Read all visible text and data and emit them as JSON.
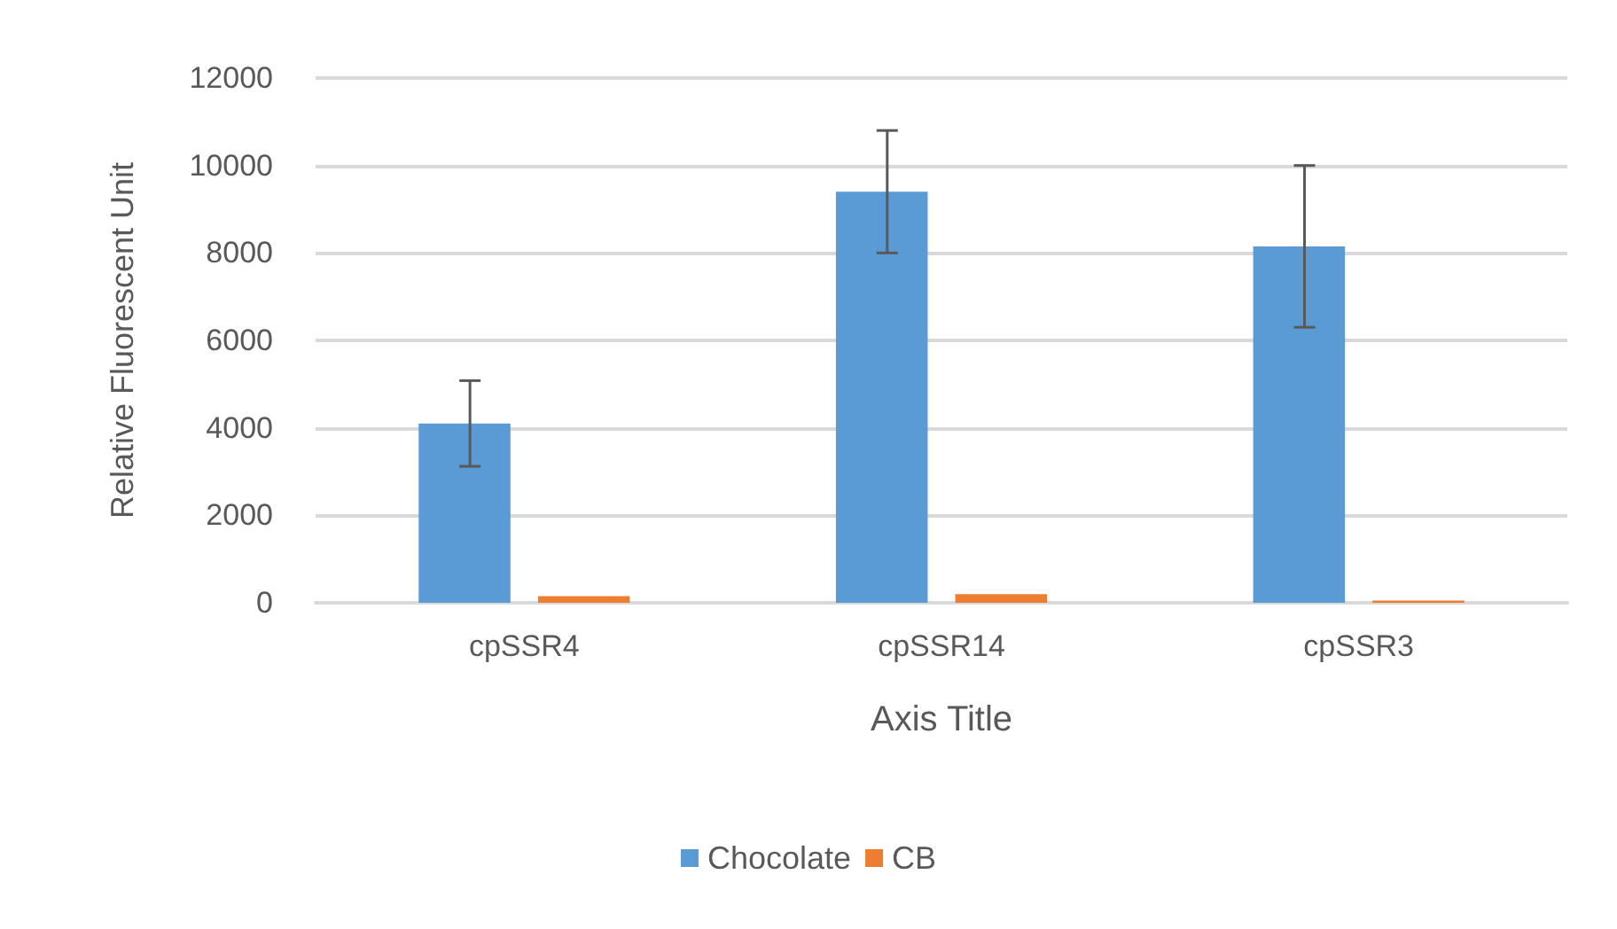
{
  "chart_data": {
    "type": "bar",
    "xlabel": "Axis Title",
    "ylabel": "Relative Fluorescent Unit",
    "categories": [
      "cpSSR4",
      "cpSSR14",
      "cpSSR3"
    ],
    "series": [
      {
        "name": "Chocolate",
        "color": "#5b9bd5",
        "values": [
          4100,
          9400,
          8150
        ],
        "errors": [
          980,
          1400,
          1850
        ]
      },
      {
        "name": "CB",
        "color": "#ed7d31",
        "values": [
          150,
          200,
          50
        ]
      }
    ],
    "ylim": [
      0,
      12000
    ],
    "yticks": [
      0,
      2000,
      4000,
      6000,
      8000,
      10000,
      12000
    ],
    "grid": "y",
    "legend": "bottom"
  }
}
